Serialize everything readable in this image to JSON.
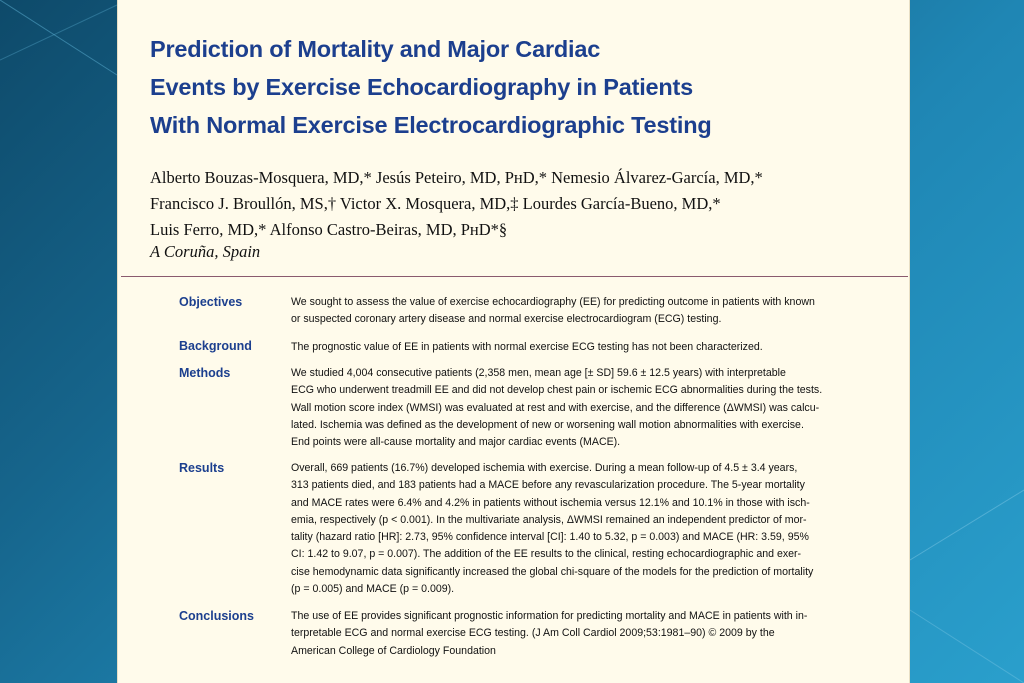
{
  "article": {
    "title_lines": [
      "Prediction of Mortality and Major Cardiac",
      "Events by Exercise Echocardiography in Patients",
      "With Normal Exercise Electrocardiographic Testing"
    ],
    "author_lines": [
      "Alberto Bouzas-Mosquera, MD,* Jesús Peteiro, MD, PʜD,* Nemesio Álvarez-García, MD,*",
      "Francisco J. Broullón, MS,† Victor X. Mosquera, MD,‡ Lourdes García-Bueno, MD,*",
      "Luis Ferro, MD,* Alfonso Castro-Beiras, MD, PʜD*§"
    ],
    "location": "A Coruña, Spain",
    "sections": [
      {
        "label": "Objectives",
        "lines": [
          "We sought to assess the value of exercise echocardiography (EE) for predicting outcome in patients with known",
          "or suspected coronary artery disease and normal exercise electrocardiogram (ECG) testing."
        ]
      },
      {
        "label": "Background",
        "lines": [
          "The prognostic value of EE in patients with normal exercise ECG testing has not been characterized."
        ]
      },
      {
        "label": "Methods",
        "lines": [
          "We studied 4,004 consecutive patients (2,358 men, mean age [± SD] 59.6 ± 12.5 years) with interpretable",
          "ECG who underwent treadmill EE and did not develop chest pain or ischemic ECG abnormalities during the tests.",
          "Wall motion score index (WMSI) was evaluated at rest and with exercise, and the difference (ΔWMSI) was calcu-",
          "lated. Ischemia was defined as the development of new or worsening wall motion abnormalities with exercise.",
          "End points were all-cause mortality and major cardiac events (MACE)."
        ]
      },
      {
        "label": "Results",
        "lines": [
          "Overall, 669 patients (16.7%) developed ischemia with exercise. During a mean follow-up of 4.5 ± 3.4 years,",
          "313 patients died, and 183 patients had a MACE before any revascularization procedure. The 5-year mortality",
          "and MACE rates were 6.4% and 4.2% in patients without ischemia versus 12.1% and 10.1% in those with isch-",
          "emia, respectively (p < 0.001). In the multivariate analysis, ΔWMSI remained an independent predictor of mor-",
          "tality (hazard ratio [HR]: 2.73, 95% confidence interval [CI]: 1.40 to 5.32, p = 0.003) and MACE (HR: 3.59, 95%",
          "CI: 1.42 to 9.07, p = 0.007). The addition of the EE results to the clinical, resting echocardiographic and exer-",
          "cise hemodynamic data significantly increased the global chi-square of the models for the prediction of mortality",
          "(p = 0.005) and MACE (p = 0.009)."
        ]
      },
      {
        "label": "Conclusions",
        "lines": [
          "The use of EE provides significant prognostic information for predicting mortality and MACE in patients with in-",
          "terpretable ECG and normal exercise ECG testing.     (J Am Coll Cardiol 2009;53:1981–90) © 2009 by the",
          "American College of Cardiology Foundation"
        ]
      }
    ]
  }
}
